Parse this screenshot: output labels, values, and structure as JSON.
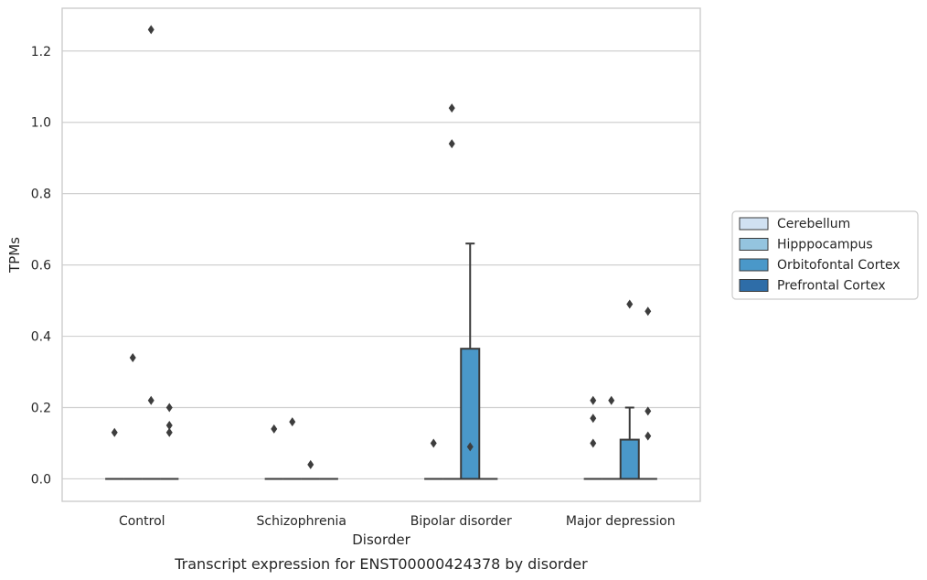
{
  "chart_data": {
    "type": "box",
    "title": "",
    "caption": "Transcript expression for ENST00000424378 by disorder",
    "xlabel": "Disorder",
    "ylabel": "TPMs",
    "ylim": [
      -0.063,
      1.32
    ],
    "yticks": [
      0.0,
      0.2,
      0.4,
      0.6,
      0.8,
      1.0,
      1.2
    ],
    "ytick_labels": [
      "0.0",
      "0.2",
      "0.4",
      "0.6",
      "0.8",
      "1.0",
      "1.2"
    ],
    "grid": "horizontal",
    "legend_position": "right",
    "categories": [
      "Control",
      "Schizophrenia",
      "Bipolar disorder",
      "Major depression"
    ],
    "series": [
      {
        "name": "Cerebellum",
        "color": "#d0e1f2"
      },
      {
        "name": "Hipppocampus",
        "color": "#94c4df"
      },
      {
        "name": "Orbitofontal Cortex",
        "color": "#4a98c9"
      },
      {
        "name": "Prefrontal Cortex",
        "color": "#2e6da8"
      }
    ],
    "boxes": [
      {
        "category": "Control",
        "series": "Cerebellum",
        "q1": 0,
        "median": 0,
        "q3": 0,
        "whisker_low": 0,
        "whisker_high": 0,
        "outliers": [
          0.13
        ]
      },
      {
        "category": "Control",
        "series": "Hipppocampus",
        "q1": 0,
        "median": 0,
        "q3": 0,
        "whisker_low": 0,
        "whisker_high": 0,
        "outliers": [
          0.34
        ]
      },
      {
        "category": "Control",
        "series": "Orbitofontal Cortex",
        "q1": 0,
        "median": 0,
        "q3": 0,
        "whisker_low": 0,
        "whisker_high": 0,
        "outliers": [
          0.22,
          1.26
        ]
      },
      {
        "category": "Control",
        "series": "Prefrontal Cortex",
        "q1": 0,
        "median": 0,
        "q3": 0,
        "whisker_low": 0,
        "whisker_high": 0,
        "outliers": [
          0.13,
          0.15,
          0.2
        ]
      },
      {
        "category": "Schizophrenia",
        "series": "Cerebellum",
        "q1": 0,
        "median": 0,
        "q3": 0,
        "whisker_low": 0,
        "whisker_high": 0,
        "outliers": [
          0.14
        ]
      },
      {
        "category": "Schizophrenia",
        "series": "Hipppocampus",
        "q1": 0,
        "median": 0,
        "q3": 0,
        "whisker_low": 0,
        "whisker_high": 0,
        "outliers": [
          0.16
        ]
      },
      {
        "category": "Schizophrenia",
        "series": "Orbitofontal Cortex",
        "q1": 0,
        "median": 0,
        "q3": 0,
        "whisker_low": 0,
        "whisker_high": 0,
        "outliers": [
          0.04
        ]
      },
      {
        "category": "Schizophrenia",
        "series": "Prefrontal Cortex",
        "q1": 0,
        "median": 0,
        "q3": 0,
        "whisker_low": 0,
        "whisker_high": 0,
        "outliers": []
      },
      {
        "category": "Bipolar disorder",
        "series": "Cerebellum",
        "q1": 0,
        "median": 0,
        "q3": 0,
        "whisker_low": 0,
        "whisker_high": 0,
        "outliers": [
          0.1
        ]
      },
      {
        "category": "Bipolar disorder",
        "series": "Hipppocampus",
        "q1": 0,
        "median": 0,
        "q3": 0,
        "whisker_low": 0,
        "whisker_high": 0,
        "outliers": [
          0.94,
          1.04
        ]
      },
      {
        "category": "Bipolar disorder",
        "series": "Orbitofontal Cortex",
        "q1": 0,
        "median": 0,
        "q3": 0.365,
        "whisker_low": 0,
        "whisker_high": 0.66,
        "outliers": [
          0.09
        ]
      },
      {
        "category": "Bipolar disorder",
        "series": "Prefrontal Cortex",
        "q1": 0,
        "median": 0,
        "q3": 0,
        "whisker_low": 0,
        "whisker_high": 0,
        "outliers": []
      },
      {
        "category": "Major depression",
        "series": "Cerebellum",
        "q1": 0,
        "median": 0,
        "q3": 0,
        "whisker_low": 0,
        "whisker_high": 0,
        "outliers": [
          0.1,
          0.17,
          0.22
        ]
      },
      {
        "category": "Major depression",
        "series": "Hipppocampus",
        "q1": 0,
        "median": 0,
        "q3": 0,
        "whisker_low": 0,
        "whisker_high": 0,
        "outliers": [
          0.22
        ]
      },
      {
        "category": "Major depression",
        "series": "Orbitofontal Cortex",
        "q1": 0,
        "median": 0,
        "q3": 0.11,
        "whisker_low": 0,
        "whisker_high": 0.2,
        "outliers": [
          0.49
        ]
      },
      {
        "category": "Major depression",
        "series": "Prefrontal Cortex",
        "q1": 0,
        "median": 0,
        "q3": 0,
        "whisker_low": 0,
        "whisker_high": 0,
        "outliers": [
          0.12,
          0.19,
          0.47
        ]
      }
    ]
  }
}
